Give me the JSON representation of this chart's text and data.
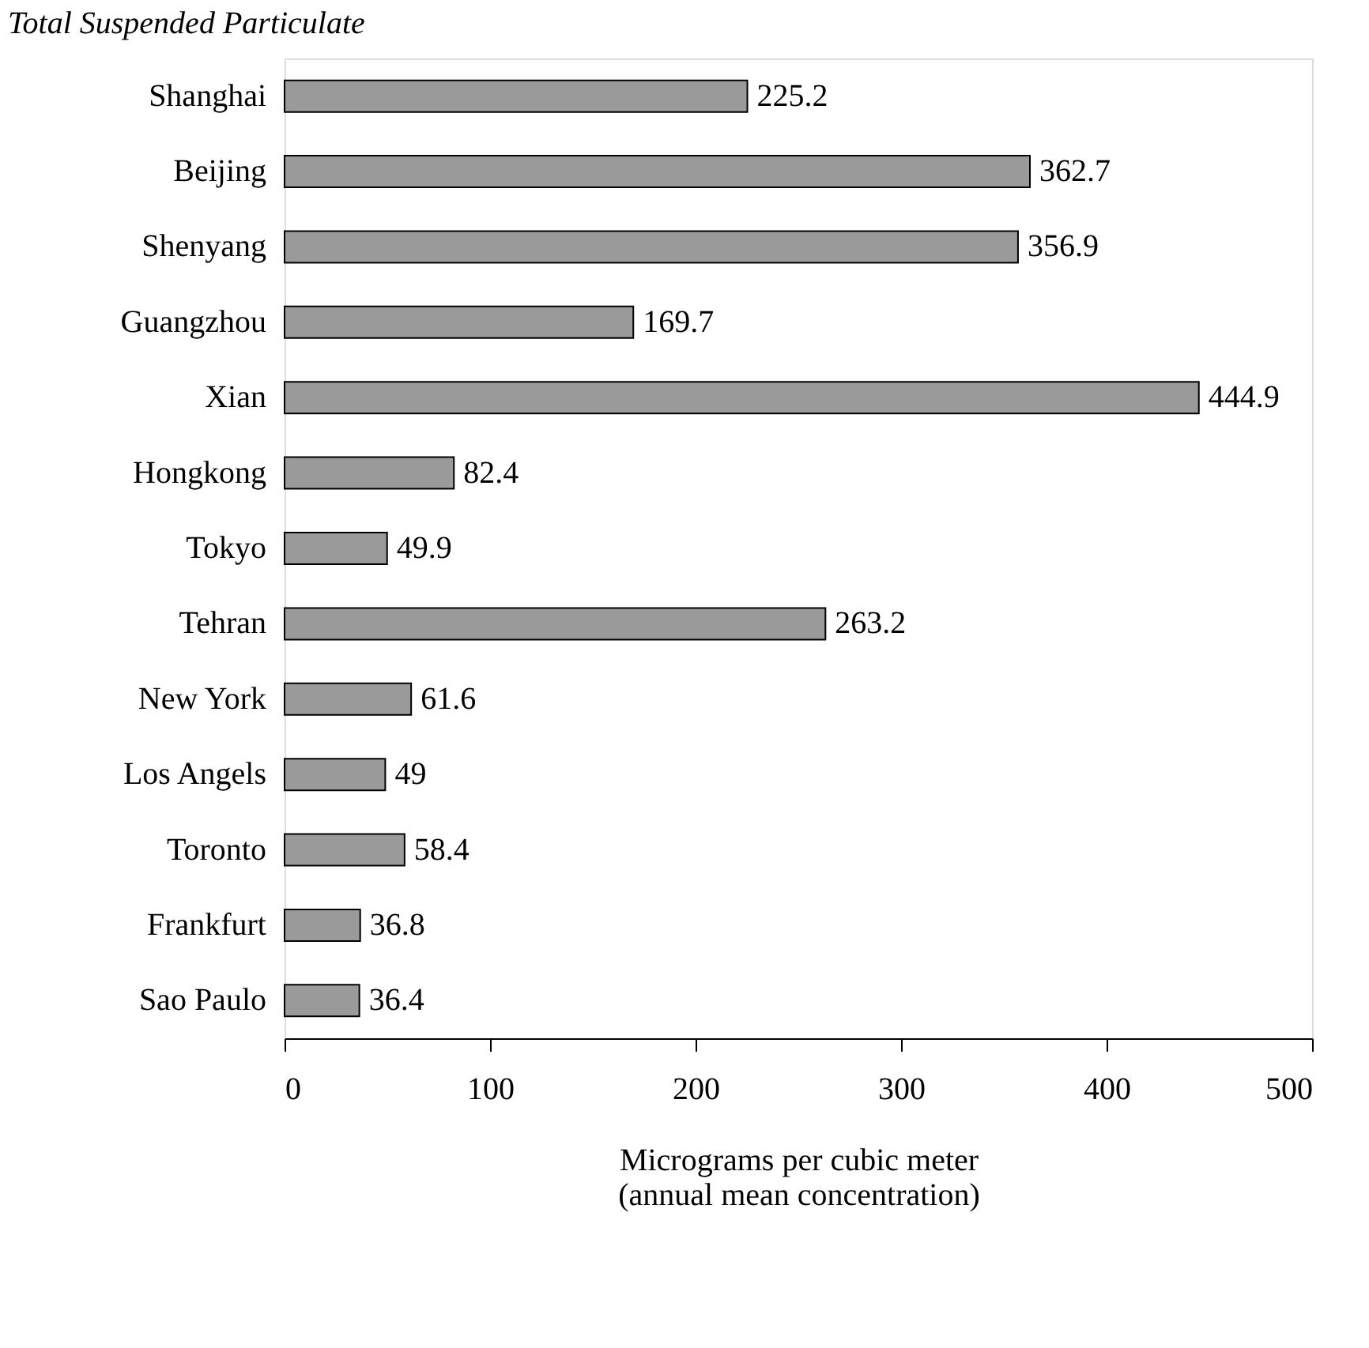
{
  "chart_data": {
    "type": "bar",
    "orientation": "horizontal",
    "title": "Total Suspended Particulate",
    "categories": [
      "Shanghai",
      "Beijing",
      "Shenyang",
      "Guangzhou",
      "Xian",
      "Hongkong",
      "Tokyo",
      "Tehran",
      "New York",
      "Los Angels",
      "Toronto",
      "Frankfurt",
      "Sao Paulo"
    ],
    "values": [
      225.2,
      362.7,
      356.9,
      169.7,
      444.9,
      82.4,
      49.9,
      263.2,
      61.6,
      49,
      58.4,
      36.8,
      36.4
    ],
    "color": "#9a9a9a",
    "xlabel": "Micrograms per cubic meter\n(annual mean concentration)",
    "xlim": [
      0,
      500
    ],
    "xticks": [
      0,
      100,
      200,
      300,
      400,
      500
    ],
    "data_labels": true,
    "grid": false
  }
}
